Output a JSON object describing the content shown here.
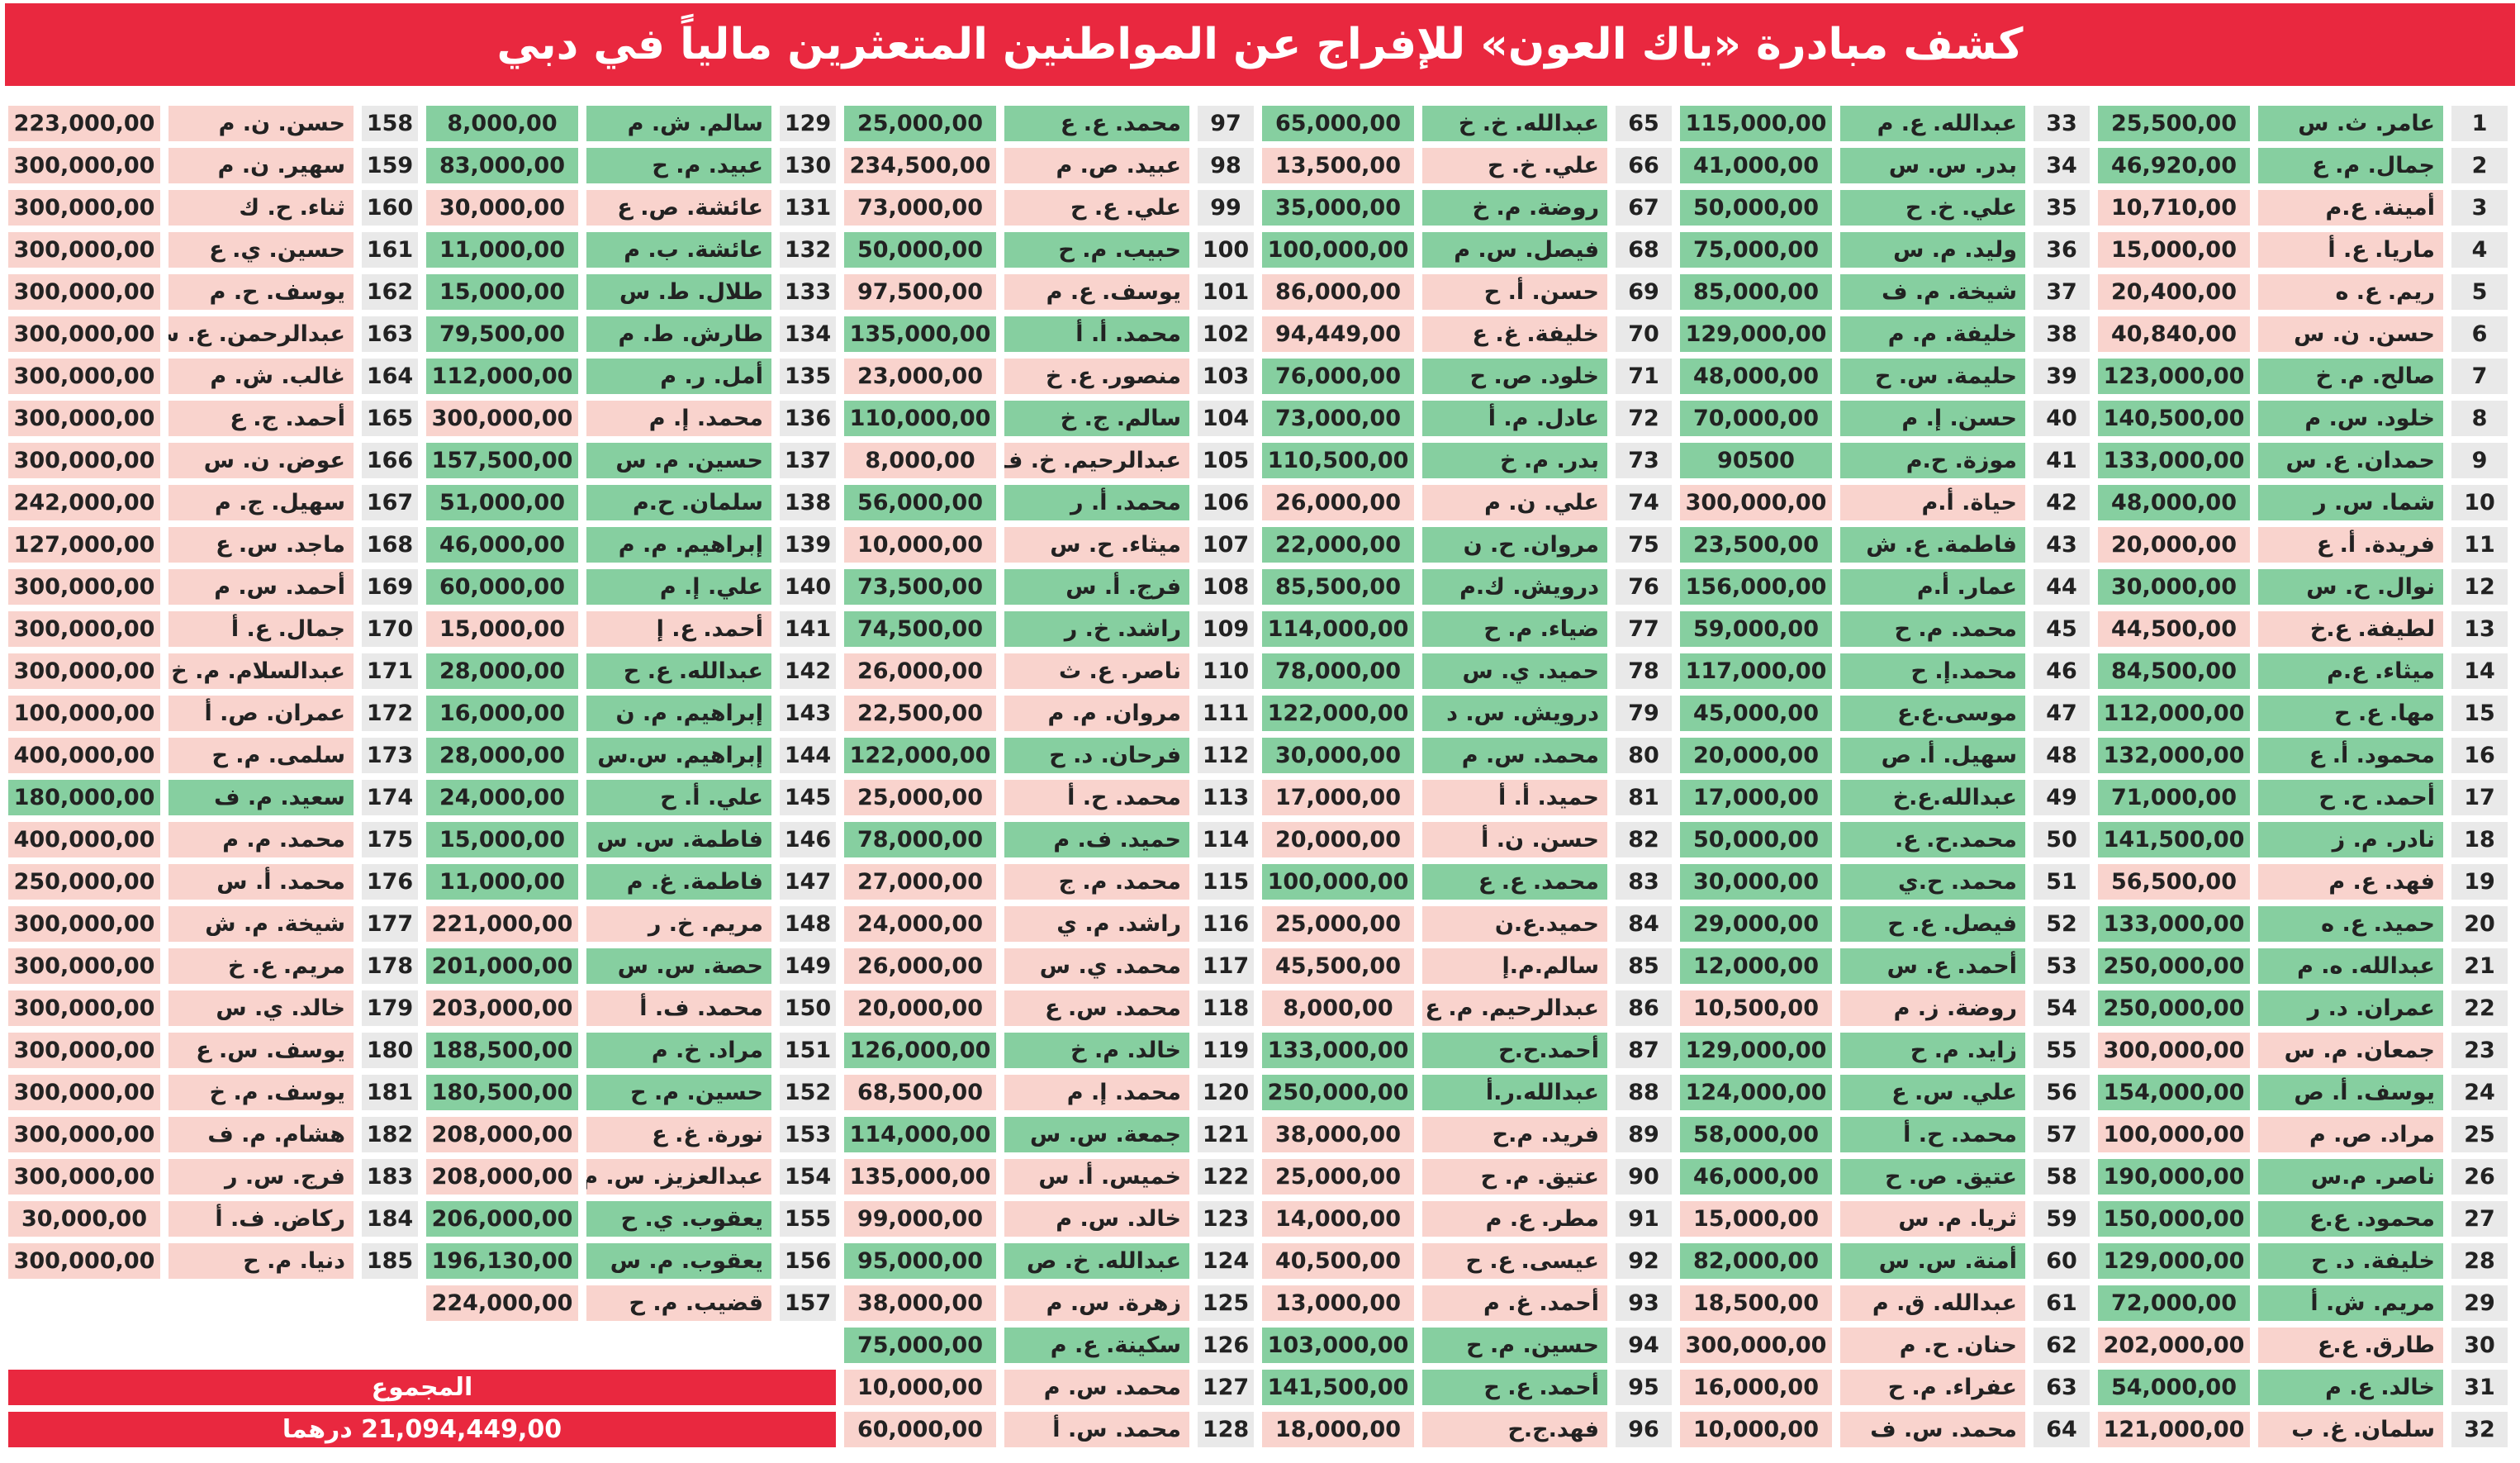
{
  "title": "كشف مبادرة «ياك العون» للإفراج عن المواطنين المتعثرين مالياً في دبي",
  "colors": {
    "green": "#86cfa0",
    "pink": "#f9d3cd"
  },
  "rows": [
    [
      1,
      "عامر. ث. س",
      "25,500,00",
      "green"
    ],
    [
      2,
      "جمال. م. ع",
      "46,920,00",
      "green"
    ],
    [
      3,
      "أمينة. ع.م",
      "10,710,00",
      "pink"
    ],
    [
      4,
      "ماريا. ع. أ",
      "15,000,00",
      "pink"
    ],
    [
      5,
      "ريم. ع. ه",
      "20,400,00",
      "pink"
    ],
    [
      6,
      "حسن. ن. س",
      "40,840,00",
      "pink"
    ],
    [
      7,
      "صالح. م. خ",
      "123,000,00",
      "green"
    ],
    [
      8,
      "خلود. س. م",
      "140,500,00",
      "green"
    ],
    [
      9,
      "حمدان. ع. س",
      "133,000,00",
      "green"
    ],
    [
      10,
      "شما. س. ر",
      "48,000,00",
      "green"
    ],
    [
      11,
      "فريدة. أ. ع",
      "20,000,00",
      "pink"
    ],
    [
      12,
      "نوال. ح. س",
      "30,000,00",
      "green"
    ],
    [
      13,
      "لطيفة. ع.خ",
      "44,500,00",
      "pink"
    ],
    [
      14,
      "ميثاء. ع.م",
      "84,500,00",
      "green"
    ],
    [
      15,
      "مها. ع. ح",
      "112,000,00",
      "green"
    ],
    [
      16,
      "محمود. أ. ع",
      "132,000,00",
      "green"
    ],
    [
      17,
      "أحمد. ح. ح",
      "71,000,00",
      "green"
    ],
    [
      18,
      "نادر. م. ز",
      "141,500,00",
      "green"
    ],
    [
      19,
      "فهد. ع. م",
      "56,500,00",
      "pink"
    ],
    [
      20,
      "حميد. ع. ه",
      "133,000,00",
      "green"
    ],
    [
      21,
      "عبدالله. ه. م",
      "250,000,00",
      "green"
    ],
    [
      22,
      "عمران. د. ر",
      "250,000,00",
      "green"
    ],
    [
      23,
      "جمعان. م. س",
      "300,000,00",
      "pink"
    ],
    [
      24,
      "يوسف. أ. ص",
      "154,000,00",
      "green"
    ],
    [
      25,
      "مراد. ص. م",
      "100,000,00",
      "pink"
    ],
    [
      26,
      "ناصر. م.س",
      "190,000,00",
      "green"
    ],
    [
      27,
      "محمود. ع.ع",
      "150,000,00",
      "green"
    ],
    [
      28,
      "خليفة. د. ح",
      "129,000,00",
      "green"
    ],
    [
      29,
      "مريم. ش. أ",
      "72,000,00",
      "green"
    ],
    [
      30,
      "طارق. ع.ع",
      "202,000,00",
      "pink"
    ],
    [
      31,
      "خالد. ع. م",
      "54,000,00",
      "green"
    ],
    [
      32,
      "سلمان. غ. ب",
      "121,000,00",
      "pink"
    ],
    [
      33,
      "عبدالله. ع. م",
      "115,000,00",
      "green"
    ],
    [
      34,
      "بدر. س. س",
      "41,000,00",
      "green"
    ],
    [
      35,
      "علي. خ. ح",
      "50,000,00",
      "green"
    ],
    [
      36,
      "وليد. م. س",
      "75,000,00",
      "green"
    ],
    [
      37,
      "شيخة. م. ف",
      "85,000,00",
      "green"
    ],
    [
      38,
      "خليفة. م. م",
      "129,000,00",
      "green"
    ],
    [
      39,
      "حليمة. س. ح",
      "48,000,00",
      "green"
    ],
    [
      40,
      "حسن. إ. م",
      "70,000,00",
      "green"
    ],
    [
      41,
      "موزة. ح.م",
      "90500",
      "green"
    ],
    [
      42,
      "حياة. أ.م",
      "300,000,00",
      "pink"
    ],
    [
      43,
      "فاطمة. ع. ش",
      "23,500,00",
      "green"
    ],
    [
      44,
      "عمار. أ.م",
      "156,000,00",
      "green"
    ],
    [
      45,
      "محمد. م. ح",
      "59,000,00",
      "green"
    ],
    [
      46,
      "محمد.إ. ح",
      "117,000,00",
      "green"
    ],
    [
      47,
      "موسى.ع.ع",
      "45,000,00",
      "green"
    ],
    [
      48,
      "سهيل. أ. ص",
      "20,000,00",
      "green"
    ],
    [
      49,
      "عبدالله.ع.خ",
      "17,000,00",
      "green"
    ],
    [
      50,
      "محمد.ح. ع.",
      "50,000,00",
      "green"
    ],
    [
      51,
      "محمد. ح.ي",
      "30,000,00",
      "green"
    ],
    [
      52,
      "فيصل. ع. ح",
      "29,000,00",
      "green"
    ],
    [
      53,
      "أحمد. ع. س",
      "12,000,00",
      "green"
    ],
    [
      54,
      "روضة. ز. م",
      "10,500,00",
      "pink"
    ],
    [
      55,
      "زايد. م. ح",
      "129,000,00",
      "green"
    ],
    [
      56,
      "علي. س. ع",
      "124,000,00",
      "green"
    ],
    [
      57,
      "محمد. ح. أ",
      "58,000,00",
      "green"
    ],
    [
      58,
      "عتيق. ص. ح",
      "46,000,00",
      "green"
    ],
    [
      59,
      "ثريا. م. س",
      "15,000,00",
      "pink"
    ],
    [
      60,
      "أمنة. س. س",
      "82,000,00",
      "green"
    ],
    [
      61,
      "عبدالله. ق. م",
      "18,500,00",
      "pink"
    ],
    [
      62,
      "حنان. ح. م",
      "300,000,00",
      "pink"
    ],
    [
      63,
      "عفراء. م. ح",
      "16,000,00",
      "pink"
    ],
    [
      64,
      "محمد. س. ف",
      "10,000,00",
      "pink"
    ],
    [
      65,
      "عبدالله. خ. خ",
      "65,000,00",
      "green"
    ],
    [
      66,
      "علي. خ. ح",
      "13,500,00",
      "pink"
    ],
    [
      67,
      "روضة. م. خ",
      "35,000,00",
      "green"
    ],
    [
      68,
      "فيصل. س. م",
      "100,000,00",
      "green"
    ],
    [
      69,
      "حسن. أ. ح",
      "86,000,00",
      "pink"
    ],
    [
      70,
      "خليفة. غ. ع",
      "94,449,00",
      "pink"
    ],
    [
      71,
      "خلود. ص. ح",
      "76,000,00",
      "green"
    ],
    [
      72,
      "عادل. م. أ",
      "73,000,00",
      "green"
    ],
    [
      73,
      "بدر. م. خ",
      "110,500,00",
      "green"
    ],
    [
      74,
      "علي. ن. م",
      "26,000,00",
      "pink"
    ],
    [
      75,
      "مروان. ح. ن",
      "22,000,00",
      "green"
    ],
    [
      76,
      "درويش. ك.م",
      "85,500,00",
      "green"
    ],
    [
      77,
      "ضياء. م. ح",
      "114,000,00",
      "green"
    ],
    [
      78,
      "حميد. ي. س",
      "78,000,00",
      "green"
    ],
    [
      79,
      "درويش. س. د",
      "122,000,00",
      "green"
    ],
    [
      80,
      "محمد. س. م",
      "30,000,00",
      "green"
    ],
    [
      81,
      "حميد. أ. أ",
      "17,000,00",
      "pink"
    ],
    [
      82,
      "حسن. ن. أ",
      "20,000,00",
      "pink"
    ],
    [
      83,
      "محمد. ع. ع",
      "100,000,00",
      "green"
    ],
    [
      84,
      "حميد.ع.ن",
      "25,000,00",
      "pink"
    ],
    [
      85,
      "سالم.م.إ",
      "45,500,00",
      "pink"
    ],
    [
      86,
      "عبدالرحيم. م. ع",
      "8,000,00",
      "pink"
    ],
    [
      87,
      "أحمد.ح.ح",
      "133,000,00",
      "green"
    ],
    [
      88,
      "عبدالله.ر.أ",
      "250,000,00",
      "green"
    ],
    [
      89,
      "فريد. م.ح",
      "38,000,00",
      "pink"
    ],
    [
      90,
      "عتيق. م. ح",
      "25,000,00",
      "pink"
    ],
    [
      91,
      "مطر. ع. م",
      "14,000,00",
      "pink"
    ],
    [
      92,
      "عيسى. ع. ح",
      "40,500,00",
      "pink"
    ],
    [
      93,
      "أحمد. غ. م",
      "13,000,00",
      "pink"
    ],
    [
      94,
      "حسين. م. ح",
      "103,000,00",
      "green"
    ],
    [
      95,
      "أحمد. ع. ح",
      "141,500,00",
      "green"
    ],
    [
      96,
      "فهد.ج.ح",
      "18,000,00",
      "pink"
    ],
    [
      97,
      "محمد. ع. ع",
      "25,000,00",
      "green"
    ],
    [
      98,
      "عبيد. ص. م",
      "234,500,00",
      "pink"
    ],
    [
      99,
      "علي. ع. ح",
      "73,000,00",
      "pink"
    ],
    [
      100,
      "حبيب. م. ح",
      "50,000,00",
      "green"
    ],
    [
      101,
      "يوسف. ع. م",
      "97,500,00",
      "pink"
    ],
    [
      102,
      "محمد. أ. أ",
      "135,000,00",
      "green"
    ],
    [
      103,
      "منصور. ع. خ",
      "23,000,00",
      "pink"
    ],
    [
      104,
      "سالم. ج. خ",
      "110,000,00",
      "green"
    ],
    [
      105,
      "عبدالرحيم. خ. ف",
      "8,000,00",
      "pink"
    ],
    [
      106,
      "محمد. أ. ر",
      "56,000,00",
      "green"
    ],
    [
      107,
      "ميثاء. ح. س",
      "10,000,00",
      "pink"
    ],
    [
      108,
      "فرج. أ. س",
      "73,500,00",
      "green"
    ],
    [
      109,
      "راشد. خ. ر",
      "74,500,00",
      "green"
    ],
    [
      110,
      "ناصر. ع. ث",
      "26,000,00",
      "pink"
    ],
    [
      111,
      "مروان. م. م",
      "22,500,00",
      "pink"
    ],
    [
      112,
      "فرحان. د. ح",
      "122,000,00",
      "green"
    ],
    [
      113,
      "محمد. ح. أ",
      "25,000,00",
      "pink"
    ],
    [
      114,
      "حميد. ف. م",
      "78,000,00",
      "green"
    ],
    [
      115,
      "محمد. م. ج",
      "27,000,00",
      "pink"
    ],
    [
      116,
      "راشد. م. ي",
      "24,000,00",
      "pink"
    ],
    [
      117,
      "محمد. ي. س",
      "26,000,00",
      "pink"
    ],
    [
      118,
      "محمد. س. ع",
      "20,000,00",
      "pink"
    ],
    [
      119,
      "خالد. م. خ",
      "126,000,00",
      "green"
    ],
    [
      120,
      "محمد. إ. م",
      "68,500,00",
      "pink"
    ],
    [
      121,
      "جمعة. س. س",
      "114,000,00",
      "green"
    ],
    [
      122,
      "خميس. أ. س",
      "135,000,00",
      "pink"
    ],
    [
      123,
      "خالد. س. م",
      "99,000,00",
      "pink"
    ],
    [
      124,
      "عبدالله. خ. ص",
      "95,000,00",
      "green"
    ],
    [
      125,
      "زهرة. س. م",
      "38,000,00",
      "pink"
    ],
    [
      126,
      "سكينة. ع. م",
      "75,000,00",
      "green"
    ],
    [
      127,
      "محمد. س. م",
      "10,000,00",
      "pink"
    ],
    [
      128,
      "محمد. س. أ",
      "60,000,00",
      "pink"
    ],
    [
      129,
      "سالم. ش. م",
      "8,000,00",
      "green"
    ],
    [
      130,
      "عبيد. م. ح",
      "83,000,00",
      "green"
    ],
    [
      131,
      "عائشة. ص. ع",
      "30,000,00",
      "pink"
    ],
    [
      132,
      "عائشة. ب. م",
      "11,000,00",
      "green"
    ],
    [
      133,
      "طلال. ط. س",
      "15,000,00",
      "green"
    ],
    [
      134,
      "طارش. ط. م",
      "79,500,00",
      "green"
    ],
    [
      135,
      "أمل. ر. م",
      "112,000,00",
      "green"
    ],
    [
      136,
      "محمد. إ. م",
      "300,000,00",
      "pink"
    ],
    [
      137,
      "حسين. م. س",
      "157,500,00",
      "green"
    ],
    [
      138,
      "سلمان. ح.م",
      "51,000,00",
      "green"
    ],
    [
      139,
      "إبراهيم. م. م",
      "46,000,00",
      "green"
    ],
    [
      140,
      "علي. إ. م",
      "60,000,00",
      "green"
    ],
    [
      141,
      "أحمد. ع. إ",
      "15,000,00",
      "pink"
    ],
    [
      142,
      "عبدالله. ع. ح",
      "28,000,00",
      "green"
    ],
    [
      143,
      "إبراهيم. م. ن",
      "16,000,00",
      "green"
    ],
    [
      144,
      "إبراهيم. س.س",
      "28,000,00",
      "green"
    ],
    [
      145,
      "علي. أ. ح",
      "24,000,00",
      "green"
    ],
    [
      146,
      "فاطمة. س. س",
      "15,000,00",
      "green"
    ],
    [
      147,
      "فاطمة. غ. م",
      "11,000,00",
      "green"
    ],
    [
      148,
      "مريم. خ. ر",
      "221,000,00",
      "pink"
    ],
    [
      149,
      "حصة. س. س",
      "201,000,00",
      "green"
    ],
    [
      150,
      "محمد. ف. أ",
      "203,000,00",
      "pink"
    ],
    [
      151,
      "مراد. خ. م",
      "188,500,00",
      "green"
    ],
    [
      152,
      "حسين. م. ح",
      "180,500,00",
      "green"
    ],
    [
      153,
      "نورة. غ. ع",
      "208,000,00",
      "pink"
    ],
    [
      154,
      "عبدالعزيز. س. م",
      "208,000,00",
      "pink"
    ],
    [
      155,
      "يعقوب. ي. ح",
      "206,000,00",
      "green"
    ],
    [
      156,
      "يعقوب. م. س",
      "196,130,00",
      "green"
    ],
    [
      157,
      "قضيب. م. ح",
      "224,000,00",
      "pink"
    ],
    [
      158,
      "حسن. ن. م",
      "223,000,00",
      "pink"
    ],
    [
      159,
      "سهير. ن. م",
      "300,000,00",
      "pink"
    ],
    [
      160,
      "ثناء. ح. ك",
      "300,000,00",
      "pink"
    ],
    [
      161,
      "حسين. ي. ع",
      "300,000,00",
      "pink"
    ],
    [
      162,
      "يوسف. ح. م",
      "300,000,00",
      "pink"
    ],
    [
      163,
      "عبدالرحمن. ع. س",
      "300,000,00",
      "pink"
    ],
    [
      164,
      "غالب. ش. م",
      "300,000,00",
      "pink"
    ],
    [
      165,
      "أحمد. ج. ع",
      "300,000,00",
      "pink"
    ],
    [
      166,
      "عوض. ن. س",
      "300,000,00",
      "pink"
    ],
    [
      167,
      "سهيل. ج. م",
      "242,000,00",
      "pink"
    ],
    [
      168,
      "ماجد. س. ع",
      "127,000,00",
      "pink"
    ],
    [
      169,
      "أحمد. س. م",
      "300,000,00",
      "pink"
    ],
    [
      170,
      "جمال. ع. أ",
      "300,000,00",
      "pink"
    ],
    [
      171,
      "عبدالسلام. م. خ",
      "300,000,00",
      "pink"
    ],
    [
      172,
      "عمران. ص. أ",
      "100,000,00",
      "pink"
    ],
    [
      173,
      "سلمى. م. ح",
      "400,000,00",
      "pink"
    ],
    [
      174,
      "سعيد. م. ف",
      "180,000,00",
      "green"
    ],
    [
      175,
      "محمد. م. م",
      "400,000,00",
      "pink"
    ],
    [
      176,
      "محمد. أ. س",
      "250,000,00",
      "pink"
    ],
    [
      177,
      "شيخة. م. ش",
      "300,000,00",
      "pink"
    ],
    [
      178,
      "مريم. ع. خ",
      "300,000,00",
      "pink"
    ],
    [
      179,
      "خالد. ي. س",
      "300,000,00",
      "pink"
    ],
    [
      180,
      "يوسف. س. ع",
      "300,000,00",
      "pink"
    ],
    [
      181,
      "يوسف. م. خ",
      "300,000,00",
      "pink"
    ],
    [
      182,
      "هشام. م. ف",
      "300,000,00",
      "pink"
    ],
    [
      183,
      "فرج. س. ر",
      "300,000,00",
      "pink"
    ],
    [
      184,
      "ركاض. ف. أ",
      "30,000,00",
      "pink"
    ],
    [
      185,
      "دنيا. م. ح",
      "300,000,00",
      "pink"
    ]
  ],
  "total": {
    "label": "المجموع",
    "amount": "21,094,449,00 درهما"
  }
}
